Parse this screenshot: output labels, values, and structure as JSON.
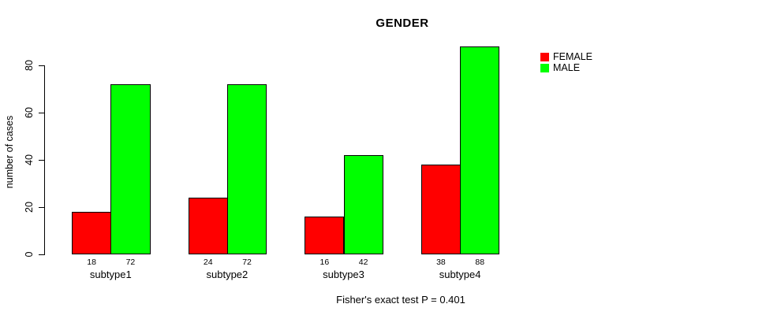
{
  "figure": {
    "background_color": "#FFFFFF",
    "text_color": "#000000"
  },
  "chart_data": {
    "type": "bar",
    "title": "GENDER",
    "ylabel": "number of cases",
    "xlabel": "",
    "categories": [
      "subtype1",
      "subtype2",
      "subtype3",
      "subtype4"
    ],
    "series": [
      {
        "name": "FEMALE",
        "color": "#FF0000",
        "values": [
          18,
          24,
          16,
          38
        ]
      },
      {
        "name": "MALE",
        "color": "#00FF00",
        "values": [
          72,
          72,
          42,
          88
        ]
      }
    ],
    "bar_value_labels": [
      [
        18,
        72
      ],
      [
        24,
        72
      ],
      [
        16,
        42
      ],
      [
        38,
        88
      ]
    ],
    "yticks": [
      0,
      20,
      40,
      60,
      80
    ],
    "ylim": [
      0,
      88
    ],
    "grid": false,
    "bar_border_color": "#000000",
    "legend_position": "right",
    "legend_entries": [
      "FEMALE",
      "MALE"
    ],
    "footnote": "Fisher's exact test P = 0.401"
  }
}
